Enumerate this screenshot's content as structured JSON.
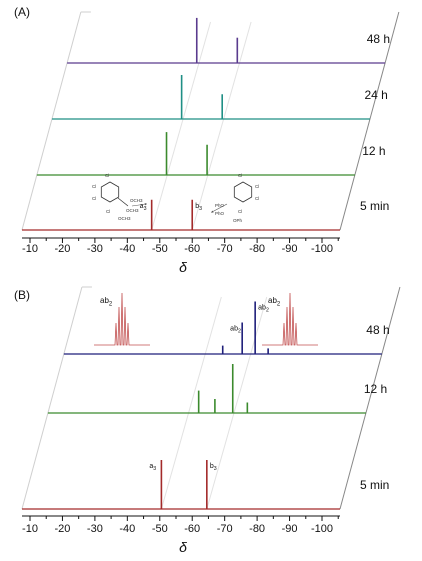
{
  "chart_data": [
    {
      "type": "line",
      "panel_label": "(A)",
      "xlabel": "δ",
      "x_ticks": [
        "-10",
        "-20",
        "-30",
        "-40",
        "-50",
        "-60",
        "-70",
        "-80",
        "-90",
        "-100"
      ],
      "xlim": [
        -8,
        -106
      ],
      "series": [
        {
          "name": "5 min",
          "color": "#a32a2a",
          "peaks": [
            {
              "x": -47.5,
              "height": 0.55,
              "label": "a3"
            },
            {
              "x": -60.0,
              "height": 0.55,
              "label": "b3"
            }
          ]
        },
        {
          "name": "12 h",
          "color": "#3b8a2d",
          "peaks": [
            {
              "x": -47.5,
              "height": 0.78
            },
            {
              "x": -60.0,
              "height": 0.55
            }
          ]
        },
        {
          "name": "24 h",
          "color": "#1f8f85",
          "peaks": [
            {
              "x": -47.5,
              "height": 0.8
            },
            {
              "x": -60.0,
              "height": 0.45
            }
          ]
        },
        {
          "name": "48 h",
          "color": "#5a3b8e",
          "peaks": [
            {
              "x": -47.5,
              "height": 0.82
            },
            {
              "x": -60.0,
              "height": 0.46
            }
          ]
        }
      ],
      "structure_left": {
        "substituents": [
          "Cl",
          "Cl",
          "Cl",
          "Cl",
          "OCH3",
          "OCH3",
          "OCH3"
        ]
      },
      "structure_right": {
        "substituents": [
          "Cl",
          "Cl",
          "Cl",
          "Cl",
          "PhO",
          "PhO",
          "OPh"
        ]
      }
    },
    {
      "type": "line",
      "panel_label": "(B)",
      "xlabel": "δ",
      "x_ticks": [
        "-10",
        "-20",
        "-30",
        "-40",
        "-50",
        "-60",
        "-70",
        "-80",
        "-90",
        "-100"
      ],
      "xlim": [
        -8,
        -106
      ],
      "series": [
        {
          "name": "5 min",
          "color": "#a32a2a",
          "peaks": [
            {
              "x": -50.5,
              "height": 0.7,
              "label": "a3"
            },
            {
              "x": -64.5,
              "height": 0.7,
              "label": "b3"
            }
          ]
        },
        {
          "name": "12 h",
          "color": "#3b8a2d",
          "peaks": [
            {
              "x": -54.0,
              "height": 0.32
            },
            {
              "x": -59.0,
              "height": 0.2
            },
            {
              "x": -64.5,
              "height": 0.7
            },
            {
              "x": -69.0,
              "height": 0.15
            }
          ]
        },
        {
          "name": "48 h",
          "color": "#1f1f7a",
          "peaks": [
            {
              "x": -56.5,
              "height": 0.12
            },
            {
              "x": -62.5,
              "height": 0.45,
              "label": "a2b"
            },
            {
              "x": -66.5,
              "height": 0.75,
              "label": "ab2"
            },
            {
              "x": -70.5,
              "height": 0.08
            }
          ]
        }
      ],
      "insets": [
        {
          "label": "a2b",
          "color": "#c25050"
        },
        {
          "label": "ab2",
          "color": "#c25050"
        }
      ]
    }
  ]
}
